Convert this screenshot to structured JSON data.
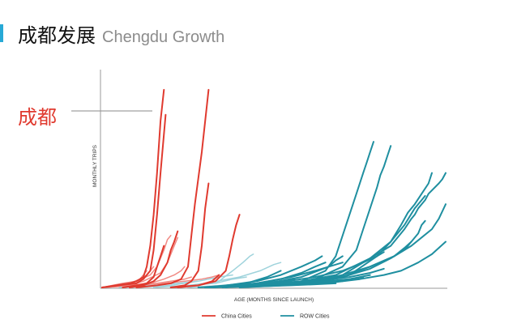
{
  "header": {
    "title_zh": "成都发展",
    "title_en": "Chengdu Growth"
  },
  "annotation": {
    "label": "成都",
    "series": "Chengdu"
  },
  "colors": {
    "accent": "#27a9d6",
    "china": "#e03a2f",
    "china_light": "#f08a84",
    "row": "#1f8fa0",
    "row_light": "#9fd3dc",
    "callout_line": "#8a8a8a",
    "axis": "#9a9a9a"
  },
  "chart_data": {
    "type": "line",
    "title": "Chengdu Growth",
    "xlabel": "AGE (MONTHS SINCE LAUNCH)",
    "ylabel": "MONTHLY TRIPS",
    "xlim": [
      0,
      100
    ],
    "ylim": [
      0,
      100
    ],
    "grid": false,
    "legend_position": "bottom-center",
    "legend": [
      "China Cities",
      "ROW Cities"
    ],
    "series": [
      {
        "name": "China Cities",
        "group": "china",
        "strong": true,
        "x": [
          0,
          4,
          8,
          10,
          12,
          13,
          14,
          15,
          16,
          17,
          18
        ],
        "y": [
          0,
          1,
          2,
          3,
          5,
          10,
          20,
          35,
          55,
          80,
          95
        ],
        "note": "Chengdu"
      },
      {
        "name": "China Cities",
        "group": "china",
        "strong": true,
        "x": [
          0,
          5,
          10,
          12,
          14,
          15,
          16,
          17,
          18.5
        ],
        "y": [
          0,
          1,
          2,
          4,
          8,
          18,
          35,
          55,
          83
        ]
      },
      {
        "name": "China Cities",
        "group": "china",
        "strong": true,
        "x": [
          10,
          16,
          20,
          23,
          25,
          26,
          27,
          29,
          30,
          31
        ],
        "y": [
          0,
          1,
          2,
          4,
          10,
          25,
          40,
          65,
          80,
          95
        ]
      },
      {
        "name": "China Cities",
        "group": "china",
        "strong": true,
        "x": [
          20,
          24,
          26,
          28,
          29,
          30,
          31
        ],
        "y": [
          0,
          1,
          3,
          8,
          20,
          38,
          50
        ]
      },
      {
        "name": "China Cities",
        "group": "china",
        "strong": true,
        "x": [
          6,
          10,
          13,
          15,
          16,
          17,
          18
        ],
        "y": [
          0,
          1,
          2,
          5,
          10,
          15,
          20
        ]
      },
      {
        "name": "China Cities",
        "group": "china",
        "strong": true,
        "x": [
          8,
          12,
          15,
          17,
          19,
          20,
          21,
          22
        ],
        "y": [
          0,
          1,
          3,
          6,
          12,
          18,
          22,
          27
        ]
      },
      {
        "name": "China Cities",
        "group": "china",
        "strong": true,
        "x": [
          20,
          28,
          33,
          36,
          37,
          38,
          39,
          40
        ],
        "y": [
          0,
          1,
          3,
          8,
          15,
          23,
          30,
          35
        ]
      },
      {
        "name": "China Cities",
        "group": "china",
        "strong": true,
        "x": [
          22,
          28,
          32,
          34
        ],
        "y": [
          0,
          1,
          3,
          6
        ]
      },
      {
        "name": "China Cities",
        "group": "china",
        "strong": false,
        "x": [
          0,
          6,
          10,
          14,
          16,
          18,
          19,
          20
        ],
        "y": [
          0,
          1,
          3,
          6,
          10,
          18,
          23,
          25
        ]
      },
      {
        "name": "China Cities",
        "group": "china",
        "strong": false,
        "x": [
          0,
          5,
          8,
          11,
          12,
          13
        ],
        "y": [
          0,
          1,
          2,
          4,
          6,
          8
        ]
      },
      {
        "name": "China Cities",
        "group": "china",
        "strong": false,
        "x": [
          0,
          6,
          10,
          13,
          15
        ],
        "y": [
          0,
          2,
          3,
          6,
          10
        ]
      },
      {
        "name": "China Cities",
        "group": "china",
        "strong": false,
        "x": [
          0,
          8,
          12,
          17,
          19,
          21,
          22
        ],
        "y": [
          0,
          1,
          3,
          7,
          12,
          20,
          24
        ]
      },
      {
        "name": "China Cities",
        "group": "china",
        "strong": false,
        "x": [
          0,
          8,
          14,
          18,
          21,
          23,
          24
        ],
        "y": [
          0,
          1,
          2,
          4,
          6,
          8,
          10
        ]
      },
      {
        "name": "China Cities",
        "group": "china",
        "strong": false,
        "x": [
          0,
          10,
          16,
          20,
          24,
          26
        ],
        "y": [
          0,
          1,
          2,
          3,
          4,
          5
        ]
      },
      {
        "name": "China Cities",
        "group": "china",
        "strong": false,
        "x": [
          0,
          10,
          18,
          24,
          29,
          32,
          34
        ],
        "y": [
          0,
          1,
          2,
          3,
          4,
          5,
          6
        ]
      },
      {
        "name": "ROW Cities",
        "group": "row",
        "strong": true,
        "x": [
          30,
          45,
          58,
          65,
          68,
          70,
          72,
          74,
          76,
          77,
          78,
          79
        ],
        "y": [
          0,
          1,
          3,
          8,
          15,
          25,
          35,
          45,
          55,
          60,
          65,
          70
        ]
      },
      {
        "name": "ROW Cities",
        "group": "row",
        "strong": true,
        "x": [
          30,
          50,
          62,
          70,
          74,
          76,
          78,
          80,
          81,
          82,
          83,
          84
        ],
        "y": [
          0,
          1,
          4,
          10,
          18,
          28,
          38,
          48,
          54,
          58,
          63,
          68
        ]
      },
      {
        "name": "ROW Cities",
        "group": "row",
        "strong": true,
        "x": [
          30,
          60,
          72,
          80,
          84,
          87,
          89,
          91,
          93,
          95,
          96
        ],
        "y": [
          0,
          2,
          6,
          15,
          22,
          30,
          36,
          40,
          45,
          50,
          55
        ]
      },
      {
        "name": "ROW Cities",
        "group": "row",
        "strong": true,
        "x": [
          30,
          55,
          68,
          78,
          84,
          88,
          90,
          91,
          92,
          94,
          95,
          98,
          99,
          100
        ],
        "y": [
          0,
          2,
          6,
          14,
          20,
          28,
          33,
          35,
          38,
          42,
          45,
          50,
          52,
          55
        ]
      },
      {
        "name": "ROW Cities",
        "group": "row",
        "strong": true,
        "x": [
          30,
          58,
          70,
          78,
          84,
          88,
          91,
          93,
          94
        ],
        "y": [
          0,
          2,
          6,
          14,
          22,
          30,
          38,
          42,
          44
        ]
      },
      {
        "name": "ROW Cities",
        "group": "row",
        "strong": true,
        "x": [
          30,
          55,
          68,
          78,
          85,
          90,
          93,
          96,
          98,
          100
        ],
        "y": [
          0,
          2,
          5,
          10,
          15,
          20,
          24,
          28,
          33,
          40
        ]
      },
      {
        "name": "ROW Cities",
        "group": "row",
        "strong": true,
        "x": [
          30,
          58,
          70,
          78,
          85,
          88,
          90,
          92,
          93,
          94
        ],
        "y": [
          0,
          2,
          5,
          10,
          15,
          19,
          22,
          26,
          30,
          32
        ]
      },
      {
        "name": "ROW Cities",
        "group": "row",
        "strong": true,
        "x": [
          35,
          60,
          70,
          78,
          84,
          88,
          90
        ],
        "y": [
          0,
          2,
          5,
          9,
          14,
          18,
          22
        ]
      },
      {
        "name": "ROW Cities",
        "group": "row",
        "strong": true,
        "x": [
          40,
          65,
          75,
          82,
          87,
          92,
          96,
          100
        ],
        "y": [
          0,
          2,
          4,
          6,
          8,
          12,
          16,
          22
        ]
      },
      {
        "name": "ROW Cities",
        "group": "row",
        "strong": true,
        "x": [
          30,
          45,
          55,
          62,
          66,
          68,
          70
        ],
        "y": [
          0,
          2,
          5,
          8,
          10,
          13,
          15
        ]
      },
      {
        "name": "ROW Cities",
        "group": "row",
        "strong": true,
        "x": [
          30,
          50,
          62,
          70,
          76,
          80,
          82
        ],
        "y": [
          0,
          2,
          5,
          8,
          12,
          15,
          17
        ]
      },
      {
        "name": "ROW Cities",
        "group": "row",
        "strong": true,
        "x": [
          30,
          50,
          62,
          72,
          78,
          82
        ],
        "y": [
          0,
          1,
          3,
          5,
          7,
          9
        ]
      },
      {
        "name": "ROW Cities",
        "group": "row",
        "strong": true,
        "x": [
          30,
          50,
          62,
          72,
          78
        ],
        "y": [
          0,
          1,
          2,
          4,
          6
        ]
      },
      {
        "name": "ROW Cities",
        "group": "row",
        "strong": true,
        "x": [
          32,
          48,
          58,
          66,
          70
        ],
        "y": [
          0,
          2,
          5,
          10,
          12
        ]
      },
      {
        "name": "ROW Cities",
        "group": "row",
        "strong": true,
        "x": [
          36,
          45,
          52,
          58,
          62,
          65
        ],
        "y": [
          0,
          2,
          4,
          7,
          10,
          12
        ]
      },
      {
        "name": "ROW Cities",
        "group": "row",
        "strong": true,
        "x": [
          32,
          45,
          52,
          58,
          62,
          64
        ],
        "y": [
          0,
          3,
          6,
          10,
          13,
          15
        ]
      },
      {
        "name": "ROW Cities",
        "group": "row",
        "strong": true,
        "x": [
          30,
          42,
          48,
          52
        ],
        "y": [
          0,
          2,
          5,
          8
        ]
      },
      {
        "name": "ROW Cities",
        "group": "row",
        "strong": true,
        "x": [
          30,
          45,
          55,
          65,
          72,
          76
        ],
        "y": [
          0,
          1,
          2,
          3,
          4,
          5
        ]
      },
      {
        "name": "ROW Cities",
        "group": "row",
        "strong": true,
        "x": [
          30,
          45,
          55,
          65,
          70
        ],
        "y": [
          0,
          1,
          2,
          3,
          3
        ]
      },
      {
        "name": "ROW Cities",
        "group": "row",
        "strong": true,
        "x": [
          30,
          45,
          55,
          62
        ],
        "y": [
          0,
          1,
          2,
          2
        ]
      },
      {
        "name": "ROW Cities",
        "group": "row",
        "strong": true,
        "x": [
          30,
          45,
          55,
          62,
          68
        ],
        "y": [
          0,
          0.5,
          1,
          1.5,
          2
        ]
      },
      {
        "name": "ROW Cities",
        "group": "row",
        "strong": true,
        "x": [
          30,
          40,
          50,
          58
        ],
        "y": [
          0,
          1,
          1.5,
          2
        ]
      },
      {
        "name": "ROW Cities",
        "group": "row",
        "strong": true,
        "x": [
          30,
          40,
          48,
          55,
          60
        ],
        "y": [
          0,
          1,
          2,
          2.5,
          3
        ]
      },
      {
        "name": "ROW Cities",
        "group": "row",
        "strong": true,
        "x": [
          28,
          38,
          46,
          52,
          56
        ],
        "y": [
          0,
          1,
          2,
          3,
          4
        ]
      },
      {
        "name": "ROW Cities",
        "group": "row",
        "strong": false,
        "x": [
          20,
          28,
          34,
          38,
          41,
          43,
          44
        ],
        "y": [
          0,
          1,
          3,
          8,
          12,
          15,
          16
        ]
      },
      {
        "name": "ROW Cities",
        "group": "row",
        "strong": false,
        "x": [
          20,
          30,
          40,
          46,
          50,
          52
        ],
        "y": [
          0,
          2,
          5,
          8,
          11,
          12
        ]
      },
      {
        "name": "ROW Cities",
        "group": "row",
        "strong": false,
        "x": [
          10,
          20,
          28,
          34,
          38
        ],
        "y": [
          0,
          1,
          3,
          5,
          6
        ]
      },
      {
        "name": "ROW Cities",
        "group": "row",
        "strong": false,
        "x": [
          15,
          25,
          33,
          38,
          42
        ],
        "y": [
          0,
          1,
          2,
          4,
          5
        ]
      },
      {
        "name": "ROW Cities",
        "group": "row",
        "strong": false,
        "x": [
          25,
          35,
          45,
          52,
          56
        ],
        "y": [
          0,
          1,
          2,
          3,
          4
        ]
      },
      {
        "name": "ROW Cities",
        "group": "row",
        "strong": false,
        "x": [
          5,
          15,
          22,
          28
        ],
        "y": [
          0,
          1,
          2,
          3
        ]
      },
      {
        "name": "ROW Cities",
        "group": "row",
        "strong": false,
        "x": [
          30,
          40,
          48,
          54
        ],
        "y": [
          0,
          1,
          2,
          3
        ]
      }
    ]
  }
}
